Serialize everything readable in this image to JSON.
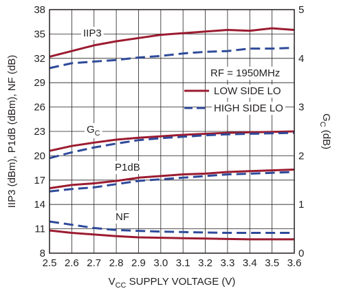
{
  "chart_data": {
    "type": "line",
    "x_label_main": "V",
    "x_label_sub": "CC",
    "x_label_rest": " SUPPLY VOLTAGE (V)",
    "y_left_label": "IIP3 (dBm), P1dB (dBm), NF (dB)",
    "y_right_label_main": "G",
    "y_right_label_sub": "C",
    "y_right_label_rest": " (dB)",
    "x_ticks": [
      "2.5",
      "2.6",
      "2.7",
      "2.8",
      "2.9",
      "3.0",
      "3.1",
      "3.2",
      "3.3",
      "3.4",
      "3.5",
      "3.6"
    ],
    "x_range": [
      2.5,
      3.6
    ],
    "y_left_ticks": [
      "8",
      "11",
      "14",
      "17",
      "20",
      "23",
      "26",
      "29",
      "32",
      "35",
      "38"
    ],
    "y_left_range": [
      8,
      38
    ],
    "y_right_ticks": [
      "0",
      "1",
      "2",
      "3",
      "4",
      "5"
    ],
    "y_right_range": [
      0,
      5
    ],
    "grid": true,
    "annotation_rf": "RF = 1950MHz",
    "legend": {
      "placement": "upper-right inside plot",
      "items": [
        {
          "label": "LOW SIDE LO",
          "style": "solid",
          "color": "#9b1b30"
        },
        {
          "label": "HIGH SIDE LO",
          "style": "dashed",
          "color": "#2e4a9a"
        }
      ]
    },
    "curve_labels": {
      "iip3": "IIP3",
      "gc_main": "G",
      "gc_sub": "C",
      "p1db": "P1dB",
      "nf": "NF"
    },
    "x": [
      2.5,
      2.6,
      2.7,
      2.8,
      2.9,
      3.0,
      3.1,
      3.2,
      3.3,
      3.4,
      3.5,
      3.6
    ],
    "series": [
      {
        "id": "iip3-low",
        "axis": "left",
        "style": "solid",
        "color": "#9b1b30",
        "values": [
          32.2,
          32.9,
          33.6,
          34.1,
          34.5,
          34.9,
          35.1,
          35.3,
          35.5,
          35.4,
          35.7,
          35.5
        ]
      },
      {
        "id": "iip3-high",
        "axis": "left",
        "style": "dashed",
        "color": "#2e4a9a",
        "values": [
          30.8,
          31.4,
          31.6,
          31.8,
          32.1,
          32.3,
          32.6,
          32.8,
          32.9,
          33.2,
          33.2,
          33.3
        ]
      },
      {
        "id": "gc-low",
        "axis": "right",
        "style": "solid",
        "color": "#9b1b30",
        "values": [
          2.1,
          2.2,
          2.27,
          2.33,
          2.37,
          2.4,
          2.43,
          2.45,
          2.47,
          2.48,
          2.49,
          2.5
        ]
      },
      {
        "id": "gc-high",
        "axis": "right",
        "style": "dashed",
        "color": "#2e4a9a",
        "values": [
          1.95,
          2.07,
          2.17,
          2.25,
          2.32,
          2.36,
          2.39,
          2.42,
          2.44,
          2.45,
          2.46,
          2.47
        ]
      },
      {
        "id": "p1db-low",
        "axis": "left",
        "style": "solid",
        "color": "#9b1b30",
        "values": [
          16.0,
          16.4,
          16.6,
          16.9,
          17.3,
          17.5,
          17.7,
          17.8,
          18.0,
          18.1,
          18.2,
          18.3
        ]
      },
      {
        "id": "p1db-high",
        "axis": "left",
        "style": "dashed",
        "color": "#2e4a9a",
        "values": [
          15.6,
          15.9,
          16.1,
          16.5,
          16.9,
          17.1,
          17.3,
          17.5,
          17.7,
          17.8,
          17.9,
          18.0
        ]
      },
      {
        "id": "nf-low",
        "axis": "left",
        "style": "solid",
        "color": "#9b1b30",
        "values": [
          10.8,
          10.5,
          10.3,
          10.1,
          9.95,
          9.9,
          9.85,
          9.8,
          9.75,
          9.7,
          9.7,
          9.7
        ]
      },
      {
        "id": "nf-high",
        "axis": "left",
        "style": "dashed",
        "color": "#2e4a9a",
        "values": [
          11.9,
          11.5,
          11.1,
          10.85,
          10.75,
          10.65,
          10.6,
          10.55,
          10.5,
          10.5,
          10.5,
          10.5
        ]
      }
    ]
  }
}
